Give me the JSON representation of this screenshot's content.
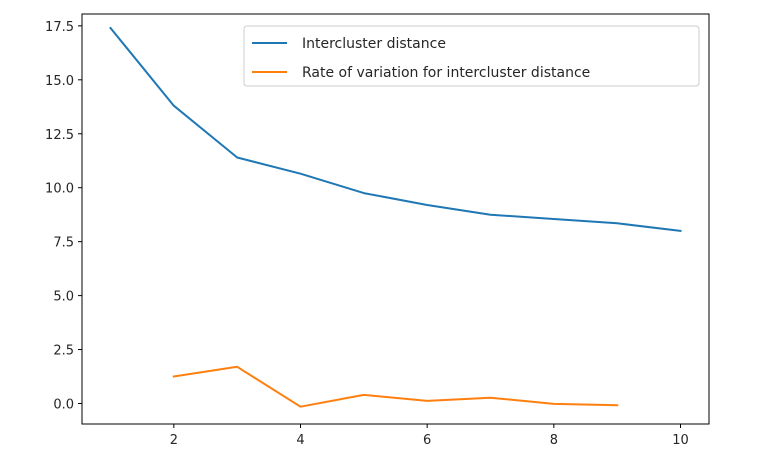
{
  "chart_data": {
    "type": "line",
    "title": "",
    "xlabel": "",
    "ylabel": "",
    "xlim": [
      0.55,
      10.45
    ],
    "ylim": [
      -0.95,
      18.05
    ],
    "xticks": [
      2,
      4,
      6,
      8,
      10
    ],
    "xtick_labels": [
      "2",
      "4",
      "6",
      "8",
      "10"
    ],
    "yticks": [
      0,
      2.5,
      5,
      7.5,
      10,
      12.5,
      15,
      17.5
    ],
    "ytick_labels": [
      "0.0",
      "2.5",
      "5.0",
      "7.5",
      "10.0",
      "12.5",
      "15.0",
      "17.5"
    ],
    "grid": false,
    "legend_position": "upper right",
    "series": [
      {
        "name": "Intercluster distance",
        "color": "#1f77b4",
        "x": [
          1,
          2,
          3,
          4,
          5,
          6,
          7,
          8,
          9,
          10
        ],
        "y": [
          17.4,
          13.8,
          11.4,
          10.65,
          9.75,
          9.2,
          8.75,
          8.55,
          8.35,
          8.0
        ]
      },
      {
        "name": "Rate of variation for intercluster distance",
        "color": "#ff7f0e",
        "x": [
          2,
          3,
          4,
          5,
          6,
          7,
          8,
          9
        ],
        "y": [
          1.25,
          1.7,
          -0.15,
          0.4,
          0.12,
          0.27,
          -0.02,
          -0.08
        ]
      }
    ]
  }
}
